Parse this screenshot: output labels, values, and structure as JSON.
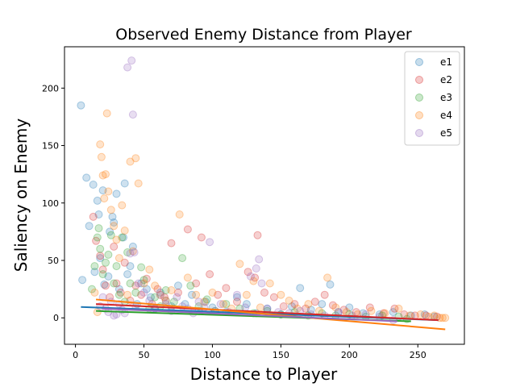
{
  "chart_data": {
    "type": "scatter",
    "title": "Observed Enemy Distance from Player",
    "xlabel": "Distance to Player",
    "ylabel": "Saliency on Enemy",
    "xlim": [
      -8,
      284
    ],
    "ylim": [
      -23,
      236
    ],
    "xticks": [
      0,
      50,
      100,
      150,
      200,
      250
    ],
    "yticks": [
      0,
      50,
      100,
      150,
      200
    ],
    "legend_position": "top-right",
    "series": [
      {
        "name": "e1",
        "color": "#1f77b4",
        "trend": [
          [
            4,
            9.5
          ],
          [
            265,
            -2
          ]
        ],
        "points": [
          [
            4,
            185
          ],
          [
            5,
            33
          ],
          [
            8,
            122
          ],
          [
            10,
            80
          ],
          [
            13,
            116
          ],
          [
            14,
            40
          ],
          [
            16,
            102
          ],
          [
            17,
            90
          ],
          [
            18,
            52
          ],
          [
            20,
            111
          ],
          [
            21,
            29
          ],
          [
            24,
            36
          ],
          [
            25,
            75
          ],
          [
            27,
            88
          ],
          [
            28,
            83
          ],
          [
            30,
            108
          ],
          [
            32,
            25
          ],
          [
            35,
            70
          ],
          [
            36,
            117
          ],
          [
            38,
            38
          ],
          [
            40,
            45
          ],
          [
            42,
            62
          ],
          [
            45,
            12
          ],
          [
            48,
            30
          ],
          [
            52,
            25
          ],
          [
            55,
            18
          ],
          [
            58,
            8
          ],
          [
            62,
            22
          ],
          [
            66,
            15
          ],
          [
            70,
            10
          ],
          [
            75,
            28
          ],
          [
            80,
            12
          ],
          [
            85,
            20
          ],
          [
            90,
            6
          ],
          [
            95,
            14
          ],
          [
            100,
            9
          ],
          [
            110,
            5
          ],
          [
            118,
            18
          ],
          [
            125,
            12
          ],
          [
            132,
            4
          ],
          [
            140,
            8
          ],
          [
            150,
            3
          ],
          [
            158,
            10
          ],
          [
            164,
            26
          ],
          [
            172,
            7
          ],
          [
            180,
            12
          ],
          [
            186,
            29
          ],
          [
            192,
            5
          ],
          [
            200,
            9
          ],
          [
            210,
            4
          ],
          [
            222,
            3
          ],
          [
            232,
            5
          ],
          [
            245,
            2
          ],
          [
            255,
            3
          ],
          [
            262,
            1
          ]
        ]
      },
      {
        "name": "e2",
        "color": "#d62728",
        "trend": [
          [
            15,
            12
          ],
          [
            265,
            -2
          ]
        ],
        "points": [
          [
            13,
            88
          ],
          [
            15,
            67
          ],
          [
            18,
            54
          ],
          [
            20,
            42
          ],
          [
            22,
            28
          ],
          [
            25,
            18
          ],
          [
            28,
            62
          ],
          [
            30,
            30
          ],
          [
            33,
            22
          ],
          [
            36,
            48
          ],
          [
            40,
            15
          ],
          [
            44,
            28
          ],
          [
            48,
            20
          ],
          [
            52,
            34
          ],
          [
            56,
            12
          ],
          [
            60,
            25
          ],
          [
            65,
            18
          ],
          [
            70,
            65
          ],
          [
            75,
            22
          ],
          [
            82,
            77
          ],
          [
            88,
            30
          ],
          [
            92,
            70
          ],
          [
            98,
            38
          ],
          [
            104,
            20
          ],
          [
            110,
            26
          ],
          [
            118,
            14
          ],
          [
            126,
            40
          ],
          [
            131,
            35
          ],
          [
            133,
            72
          ],
          [
            138,
            22
          ],
          [
            145,
            18
          ],
          [
            152,
            10
          ],
          [
            160,
            12
          ],
          [
            168,
            8
          ],
          [
            175,
            14
          ],
          [
            182,
            20
          ],
          [
            188,
            11
          ],
          [
            196,
            7
          ],
          [
            205,
            5
          ],
          [
            215,
            9
          ],
          [
            225,
            4
          ],
          [
            233,
            8
          ],
          [
            240,
            3
          ],
          [
            248,
            2
          ],
          [
            256,
            2
          ],
          [
            264,
            1
          ]
        ]
      },
      {
        "name": "e3",
        "color": "#2ca02c",
        "trend": [
          [
            15,
            6
          ],
          [
            245,
            -3
          ]
        ],
        "points": [
          [
            12,
            25
          ],
          [
            14,
            45
          ],
          [
            16,
            70
          ],
          [
            17,
            78
          ],
          [
            18,
            60
          ],
          [
            20,
            38
          ],
          [
            22,
            48
          ],
          [
            24,
            55
          ],
          [
            26,
            72
          ],
          [
            28,
            30
          ],
          [
            30,
            45
          ],
          [
            32,
            20
          ],
          [
            34,
            70
          ],
          [
            36,
            14
          ],
          [
            38,
            57
          ],
          [
            40,
            30
          ],
          [
            44,
            22
          ],
          [
            48,
            44
          ],
          [
            50,
            33
          ],
          [
            54,
            8
          ],
          [
            58,
            18
          ],
          [
            62,
            10
          ],
          [
            66,
            24
          ],
          [
            72,
            14
          ],
          [
            78,
            52
          ],
          [
            84,
            28
          ],
          [
            90,
            10
          ],
          [
            96,
            16
          ],
          [
            102,
            6
          ],
          [
            110,
            12
          ],
          [
            120,
            8
          ],
          [
            130,
            4
          ],
          [
            140,
            6
          ],
          [
            150,
            3
          ],
          [
            160,
            5
          ],
          [
            170,
            2
          ],
          [
            180,
            4
          ],
          [
            190,
            2
          ],
          [
            200,
            3
          ],
          [
            212,
            1
          ],
          [
            224,
            2
          ],
          [
            236,
            1
          ],
          [
            242,
            -1
          ]
        ]
      },
      {
        "name": "e4",
        "color": "#ff7f0e",
        "trend": [
          [
            15,
            16
          ],
          [
            270,
            -10
          ]
        ],
        "points": [
          [
            14,
            22
          ],
          [
            16,
            5
          ],
          [
            18,
            151
          ],
          [
            19,
            140
          ],
          [
            20,
            124
          ],
          [
            21,
            104
          ],
          [
            22,
            125
          ],
          [
            23,
            178
          ],
          [
            24,
            110
          ],
          [
            26,
            94
          ],
          [
            28,
            80
          ],
          [
            30,
            68
          ],
          [
            32,
            52
          ],
          [
            34,
            98
          ],
          [
            36,
            76
          ],
          [
            38,
            20
          ],
          [
            40,
            136
          ],
          [
            42,
            58
          ],
          [
            44,
            139
          ],
          [
            46,
            117
          ],
          [
            50,
            30
          ],
          [
            54,
            42
          ],
          [
            58,
            28
          ],
          [
            62,
            20
          ],
          [
            66,
            15
          ],
          [
            70,
            24
          ],
          [
            76,
            90
          ],
          [
            82,
            35
          ],
          [
            88,
            20
          ],
          [
            94,
            14
          ],
          [
            100,
            22
          ],
          [
            108,
            12
          ],
          [
            114,
            8
          ],
          [
            120,
            47
          ],
          [
            125,
            20
          ],
          [
            130,
            32
          ],
          [
            135,
            9
          ],
          [
            142,
            30
          ],
          [
            150,
            20
          ],
          [
            156,
            15
          ],
          [
            162,
            8
          ],
          [
            170,
            12
          ],
          [
            178,
            6
          ],
          [
            184,
            35
          ],
          [
            190,
            9
          ],
          [
            198,
            5
          ],
          [
            206,
            3
          ],
          [
            216,
            6
          ],
          [
            226,
            4
          ],
          [
            236,
            8
          ],
          [
            244,
            2
          ],
          [
            252,
            3
          ],
          [
            258,
            1
          ],
          [
            262,
            2
          ],
          [
            266,
            0
          ],
          [
            268,
            0
          ],
          [
            270,
            0
          ]
        ]
      },
      {
        "name": "e5",
        "color": "#9467bd",
        "trend": [
          [
            20,
            8
          ],
          [
            235,
            -3
          ]
        ],
        "points": [
          [
            18,
            10
          ],
          [
            20,
            18
          ],
          [
            22,
            8
          ],
          [
            24,
            5
          ],
          [
            26,
            14
          ],
          [
            28,
            2
          ],
          [
            30,
            3
          ],
          [
            32,
            12
          ],
          [
            34,
            7
          ],
          [
            36,
            4
          ],
          [
            38,
            218
          ],
          [
            40,
            56
          ],
          [
            41,
            224
          ],
          [
            42,
            177
          ],
          [
            43,
            57
          ],
          [
            44,
            10
          ],
          [
            46,
            30
          ],
          [
            50,
            22
          ],
          [
            54,
            15
          ],
          [
            58,
            8
          ],
          [
            62,
            20
          ],
          [
            66,
            12
          ],
          [
            70,
            6
          ],
          [
            74,
            18
          ],
          [
            78,
            10
          ],
          [
            82,
            8
          ],
          [
            86,
            4
          ],
          [
            90,
            14
          ],
          [
            94,
            9
          ],
          [
            98,
            66
          ],
          [
            102,
            6
          ],
          [
            106,
            12
          ],
          [
            112,
            5
          ],
          [
            118,
            20
          ],
          [
            124,
            9
          ],
          [
            128,
            36
          ],
          [
            132,
            43
          ],
          [
            134,
            51
          ],
          [
            136,
            30
          ],
          [
            140,
            8
          ],
          [
            148,
            5
          ],
          [
            156,
            4
          ],
          [
            164,
            6
          ],
          [
            172,
            3
          ],
          [
            182,
            2
          ],
          [
            192,
            5
          ],
          [
            202,
            2
          ],
          [
            212,
            3
          ],
          [
            222,
            1
          ],
          [
            232,
            -2
          ]
        ]
      }
    ]
  }
}
